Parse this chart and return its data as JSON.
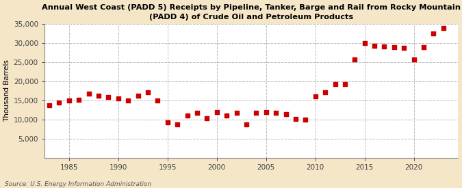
{
  "title": "Annual West Coast (PADD 5) Receipts by Pipeline, Tanker, Barge and Rail from Rocky Mountain\n(PADD 4) of Crude Oil and Petroleum Products",
  "ylabel": "Thousand Barrels",
  "source": "Source: U.S. Energy Information Administration",
  "background_color": "#f5e6c8",
  "plot_background_color": "#ffffff",
  "marker_color": "#cc0000",
  "years": [
    1983,
    1984,
    1985,
    1986,
    1987,
    1988,
    1989,
    1990,
    1991,
    1992,
    1993,
    1994,
    1995,
    1996,
    1997,
    1998,
    1999,
    2000,
    2001,
    2002,
    2003,
    2004,
    2005,
    2006,
    2007,
    2008,
    2009,
    2010,
    2011,
    2012,
    2013,
    2014,
    2015,
    2016,
    2017,
    2018,
    2019,
    2020,
    2021,
    2022,
    2023
  ],
  "values": [
    13700,
    14500,
    15000,
    15200,
    16800,
    16200,
    15800,
    15600,
    15000,
    16200,
    17200,
    15000,
    9200,
    8800,
    11000,
    11800,
    10400,
    12000,
    11000,
    11800,
    8700,
    11800,
    12000,
    11700,
    11500,
    10100,
    10000,
    16000,
    17200,
    19200,
    19200,
    25600,
    30000,
    29200,
    29000,
    28800,
    28600,
    25700,
    28800,
    32500,
    33800
  ],
  "ylim": [
    0,
    35000
  ],
  "yticks": [
    5000,
    10000,
    15000,
    20000,
    25000,
    30000,
    35000
  ],
  "xlim": [
    1982.5,
    2024.5
  ],
  "xticks": [
    1985,
    1990,
    1995,
    2000,
    2005,
    2010,
    2015,
    2020
  ]
}
